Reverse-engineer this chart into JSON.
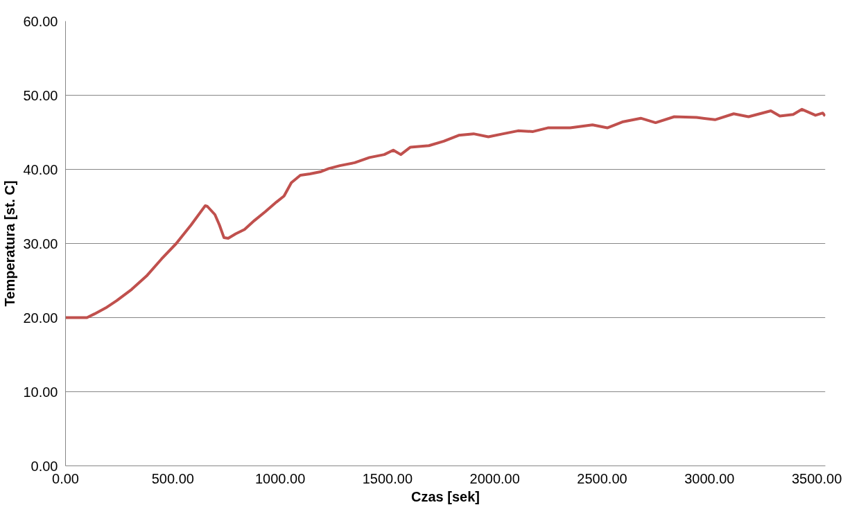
{
  "chart_data": {
    "type": "line",
    "xlabel": "Czas [sek]",
    "ylabel": "Temperatura [st. C]",
    "x": [
      0,
      100,
      135,
      187,
      239,
      308,
      377,
      447,
      516,
      585,
      651,
      661,
      696,
      717,
      738,
      758,
      793,
      834,
      880,
      931,
      983,
      1018,
      1052,
      1094,
      1139,
      1191,
      1226,
      1278,
      1347,
      1416,
      1485,
      1527,
      1562,
      1607,
      1693,
      1762,
      1832,
      1901,
      1970,
      2039,
      2108,
      2178,
      2247,
      2351,
      2455,
      2524,
      2594,
      2680,
      2749,
      2836,
      2940,
      3026,
      3113,
      3182,
      3286,
      3328,
      3390,
      3431,
      3494,
      3528,
      3539
    ],
    "series": [
      {
        "color": "#c0504d",
        "values": [
          20.0,
          20.0,
          20.5,
          21.3,
          22.3,
          23.8,
          25.6,
          27.9,
          30.0,
          32.5,
          35.1,
          35.0,
          33.9,
          32.5,
          30.8,
          30.7,
          31.3,
          31.9,
          33.1,
          34.3,
          35.6,
          36.4,
          38.2,
          39.2,
          39.4,
          39.7,
          40.1,
          40.5,
          40.9,
          41.6,
          42.0,
          42.6,
          42.0,
          43.0,
          43.2,
          43.8,
          44.6,
          44.8,
          44.4,
          44.8,
          45.2,
          45.1,
          45.6,
          45.6,
          46.0,
          45.6,
          46.4,
          46.9,
          46.3,
          47.1,
          47.0,
          46.7,
          47.5,
          47.1,
          47.9,
          47.2,
          47.4,
          48.1,
          47.3,
          47.6,
          47.2
        ]
      }
    ],
    "xlim": [
      0,
      3540
    ],
    "ylim": [
      0,
      60
    ],
    "xticks": [
      {
        "value": 0,
        "label": "0.00"
      },
      {
        "value": 500,
        "label": "500.00"
      },
      {
        "value": 1000,
        "label": "1000.00"
      },
      {
        "value": 1500,
        "label": "1500.00"
      },
      {
        "value": 2000,
        "label": "2000.00"
      },
      {
        "value": 2500,
        "label": "2500.00"
      },
      {
        "value": 3000,
        "label": "3000.00"
      },
      {
        "value": 3500,
        "label": "3500.00"
      }
    ],
    "yticks": [
      {
        "value": 0,
        "label": "0.00"
      },
      {
        "value": 10,
        "label": "10.00"
      },
      {
        "value": 20,
        "label": "20.00"
      },
      {
        "value": 30,
        "label": "30.00"
      },
      {
        "value": 40,
        "label": "40.00"
      },
      {
        "value": 50,
        "label": "50.00"
      },
      {
        "value": 60,
        "label": "60.00"
      }
    ],
    "grid": "y",
    "marker": "none",
    "line_style": "solid"
  }
}
